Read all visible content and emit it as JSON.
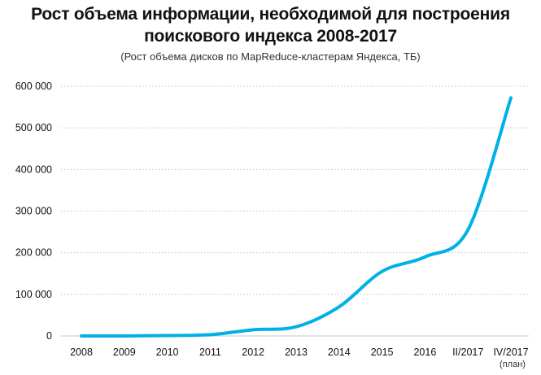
{
  "chart_data": {
    "type": "line",
    "title_lines": [
      "Рост объема информации, необходимой для построения",
      "поискового индекса 2008-2017"
    ],
    "subtitle": "(Рост объема дисков по MapReduce-кластерам Яндекса, ТБ)",
    "categories": [
      "2008",
      "2009",
      "2010",
      "2011",
      "2012",
      "2013",
      "2014",
      "2015",
      "2016",
      "II/2017",
      "IV/2017"
    ],
    "category_notes": [
      "",
      "",
      "",
      "",
      "",
      "",
      "",
      "",
      "",
      "",
      "(план)"
    ],
    "series": [
      {
        "values": [
          0,
          0,
          1000,
          3000,
          15000,
          22000,
          70000,
          155000,
          190000,
          255000,
          572000
        ]
      }
    ],
    "ylim": [
      0,
      600000
    ],
    "yticks": [
      0,
      100000,
      200000,
      300000,
      400000,
      500000,
      600000
    ],
    "ytick_labels": [
      "0",
      "100 000",
      "200 000",
      "300 000",
      "400 000",
      "500 000",
      "600 000"
    ],
    "grid": true,
    "line_color": "#00b0e8",
    "grid_color": "#c4c4c4"
  }
}
